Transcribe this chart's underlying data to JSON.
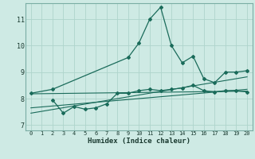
{
  "xlabel": "Humidex (Indice chaleur)",
  "bg_color": "#ceeae4",
  "line_color": "#1a6b5a",
  "grid_color": "#aed4cc",
  "xlim": [
    -0.5,
    20.5
  ],
  "ylim": [
    6.8,
    11.6
  ],
  "xticks": [
    0,
    1,
    2,
    3,
    4,
    5,
    6,
    7,
    8,
    9,
    10,
    11,
    12,
    13,
    14,
    15,
    16,
    17,
    18,
    19,
    20
  ],
  "yticks": [
    7,
    8,
    9,
    10,
    11
  ],
  "series1_x": [
    0,
    2,
    9,
    10,
    11,
    12,
    13,
    14,
    15,
    16,
    17,
    18,
    19,
    20
  ],
  "series1_y": [
    8.2,
    8.35,
    9.55,
    10.1,
    11.0,
    11.45,
    10.0,
    9.35,
    9.6,
    8.75,
    8.6,
    9.0,
    9.0,
    9.05
  ],
  "series2_x": [
    2,
    3,
    4,
    5,
    6,
    7,
    8,
    9,
    10,
    11,
    12,
    13,
    14,
    15,
    16,
    17,
    18,
    19,
    20
  ],
  "series2_y": [
    7.95,
    7.45,
    7.7,
    7.6,
    7.65,
    7.8,
    8.2,
    8.2,
    8.3,
    8.35,
    8.3,
    8.35,
    8.4,
    8.5,
    8.3,
    8.25,
    8.3,
    8.3,
    8.25
  ],
  "line1_x": [
    0,
    20
  ],
  "line1_y": [
    8.18,
    8.28
  ],
  "line2_x": [
    0,
    20
  ],
  "line2_y": [
    7.65,
    8.35
  ],
  "line3_x": [
    0,
    20
  ],
  "line3_y": [
    7.45,
    8.82
  ]
}
